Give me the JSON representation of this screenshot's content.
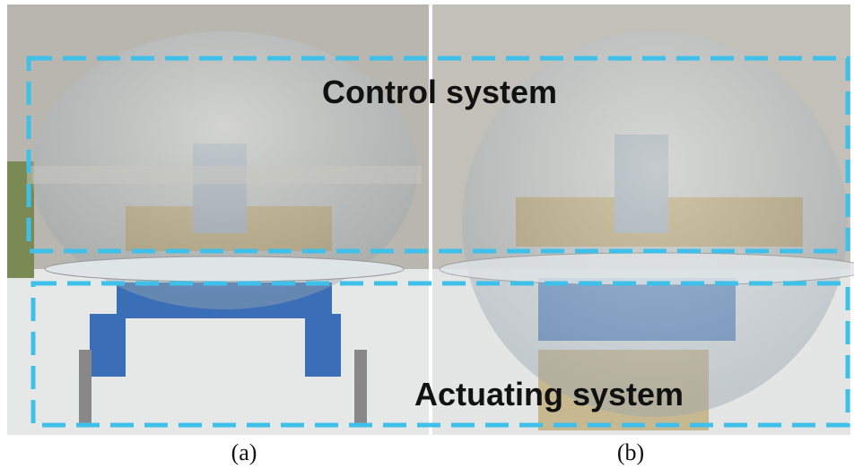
{
  "annotations": {
    "top_box": "Control system",
    "bottom_box": "Actuating system"
  },
  "captions": [
    "(a)",
    "(b)"
  ]
}
